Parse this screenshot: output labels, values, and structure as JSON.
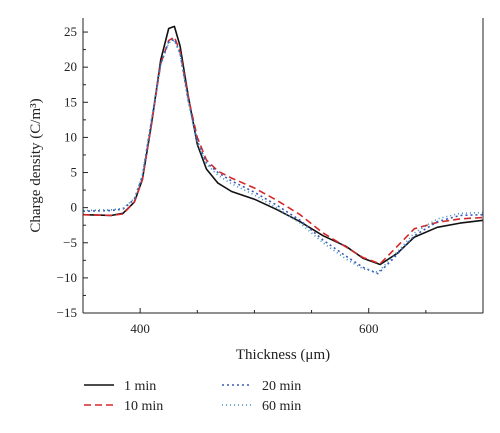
{
  "chart_data": {
    "type": "line",
    "xlabel": "Thickness (μm)",
    "ylabel": "Charge density (C/m³)",
    "xlim": [
      350,
      700
    ],
    "ylim": [
      -15,
      27
    ],
    "x_ticks": [
      400,
      600
    ],
    "y_ticks": [
      -15,
      -10,
      -5,
      0,
      5,
      10,
      15,
      20,
      25
    ],
    "legend_position": "bottom",
    "series": [
      {
        "name": "1 min",
        "color": "#111111",
        "dash": "solid",
        "points": [
          [
            350,
            -1.0
          ],
          [
            375,
            -1.1
          ],
          [
            385,
            -0.8
          ],
          [
            395,
            0.8
          ],
          [
            402,
            4
          ],
          [
            410,
            12
          ],
          [
            418,
            21
          ],
          [
            425,
            25.5
          ],
          [
            430,
            25.8
          ],
          [
            435,
            23
          ],
          [
            442,
            16
          ],
          [
            450,
            9
          ],
          [
            458,
            5.5
          ],
          [
            468,
            3.5
          ],
          [
            480,
            2.3
          ],
          [
            500,
            1.2
          ],
          [
            520,
            -0.3
          ],
          [
            540,
            -2
          ],
          [
            560,
            -4
          ],
          [
            580,
            -5.5
          ],
          [
            595,
            -7.2
          ],
          [
            610,
            -8.1
          ],
          [
            625,
            -6.5
          ],
          [
            640,
            -4.2
          ],
          [
            660,
            -2.8
          ],
          [
            680,
            -2.2
          ],
          [
            700,
            -1.8
          ]
        ]
      },
      {
        "name": "10 min",
        "color": "#d62728",
        "dash": "7 4",
        "points": [
          [
            350,
            -1.0
          ],
          [
            375,
            -1.1
          ],
          [
            385,
            -0.9
          ],
          [
            395,
            0.8
          ],
          [
            402,
            4
          ],
          [
            410,
            12
          ],
          [
            418,
            20.5
          ],
          [
            425,
            23.8
          ],
          [
            430,
            24.3
          ],
          [
            435,
            22.2
          ],
          [
            442,
            15.8
          ],
          [
            450,
            10
          ],
          [
            458,
            6.8
          ],
          [
            468,
            5.2
          ],
          [
            480,
            4.2
          ],
          [
            500,
            2.8
          ],
          [
            520,
            1.0
          ],
          [
            540,
            -1.0
          ],
          [
            560,
            -3.6
          ],
          [
            580,
            -5.6
          ],
          [
            595,
            -7.1
          ],
          [
            610,
            -8.0
          ],
          [
            625,
            -5.5
          ],
          [
            640,
            -3.0
          ],
          [
            660,
            -2.1
          ],
          [
            680,
            -1.6
          ],
          [
            700,
            -1.4
          ]
        ]
      },
      {
        "name": "20 min",
        "color": "#3a5ab5",
        "dash": "2 3",
        "points": [
          [
            350,
            -0.5
          ],
          [
            375,
            -0.4
          ],
          [
            385,
            -0.2
          ],
          [
            395,
            1.2
          ],
          [
            402,
            4.5
          ],
          [
            410,
            12.5
          ],
          [
            418,
            20.5
          ],
          [
            425,
            23.6
          ],
          [
            430,
            24.0
          ],
          [
            435,
            22.0
          ],
          [
            442,
            15.4
          ],
          [
            450,
            9.5
          ],
          [
            458,
            6.4
          ],
          [
            468,
            5.0
          ],
          [
            480,
            3.8
          ],
          [
            500,
            2.2
          ],
          [
            520,
            0.3
          ],
          [
            540,
            -1.8
          ],
          [
            560,
            -4.6
          ],
          [
            580,
            -6.9
          ],
          [
            595,
            -8.5
          ],
          [
            608,
            -9.4
          ],
          [
            620,
            -7.5
          ],
          [
            640,
            -4.0
          ],
          [
            660,
            -2.0
          ],
          [
            680,
            -1.1
          ],
          [
            700,
            -1.0
          ]
        ]
      },
      {
        "name": "60 min",
        "color": "#3f8fbf",
        "dash": "1 3",
        "points": [
          [
            350,
            -0.4
          ],
          [
            375,
            -0.3
          ],
          [
            385,
            -0.1
          ],
          [
            395,
            1.3
          ],
          [
            402,
            4.6
          ],
          [
            410,
            12.6
          ],
          [
            418,
            20.3
          ],
          [
            425,
            23.5
          ],
          [
            430,
            23.8
          ],
          [
            435,
            21.8
          ],
          [
            442,
            15.2
          ],
          [
            450,
            9.2
          ],
          [
            458,
            6.2
          ],
          [
            468,
            4.6
          ],
          [
            480,
            3.4
          ],
          [
            500,
            1.8
          ],
          [
            520,
            -0.1
          ],
          [
            540,
            -2.2
          ],
          [
            560,
            -5.0
          ],
          [
            580,
            -7.3
          ],
          [
            595,
            -8.7
          ],
          [
            608,
            -9.2
          ],
          [
            620,
            -7.2
          ],
          [
            640,
            -3.6
          ],
          [
            660,
            -1.6
          ],
          [
            680,
            -0.8
          ],
          [
            700,
            -0.7
          ]
        ]
      }
    ]
  }
}
